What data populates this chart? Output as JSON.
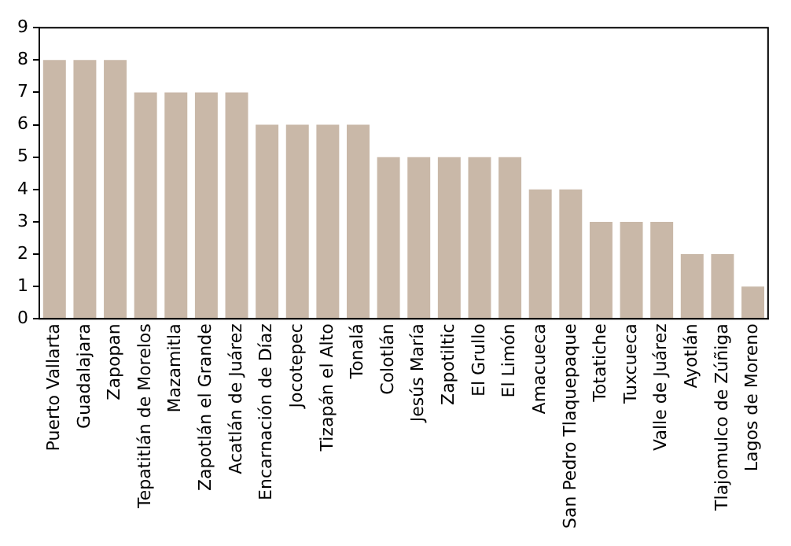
{
  "chart_data": {
    "type": "bar",
    "categories": [
      "Puerto Vallarta",
      "Guadalajara",
      "Zapopan",
      "Tepatitlán de Morelos",
      "Mazamitla",
      "Zapotlán el Grande",
      "Acatlán de Juárez",
      "Encarnación de Díaz",
      "Jocotepec",
      "Tizapán el Alto",
      "Tonalá",
      "Colotlán",
      "Jesús María",
      "Zapotiltic",
      "El Grullo",
      "El Limón",
      "Amacueca",
      "San Pedro Tlaquepaque",
      "Totatiche",
      "Tuxcueca",
      "Valle de Juárez",
      "Ayotlán",
      "Tlajomulco de Zúñiga",
      "Lagos de Moreno"
    ],
    "values": [
      8,
      8,
      8,
      7,
      7,
      7,
      7,
      6,
      6,
      6,
      6,
      5,
      5,
      5,
      5,
      5,
      4,
      4,
      3,
      3,
      3,
      2,
      2,
      1
    ],
    "color": "#c9b8a8",
    "ylim": [
      0,
      9
    ],
    "yticks": [
      0,
      1,
      2,
      3,
      4,
      5,
      6,
      7,
      8,
      9
    ],
    "grid": false,
    "legend": false
  }
}
